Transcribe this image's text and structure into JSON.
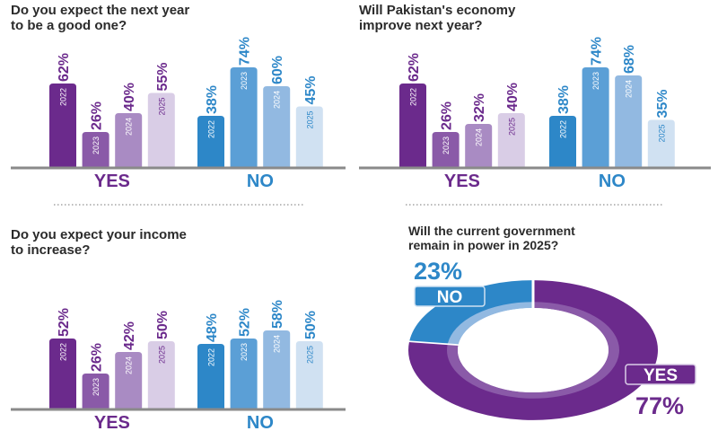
{
  "colors": {
    "yes": [
      "#6b2a8c",
      "#8a5aa8",
      "#a98bc3",
      "#d9cde6"
    ],
    "no": [
      "#2d87c8",
      "#5b9fd6",
      "#92b9e1",
      "#d0e1f2"
    ],
    "yes_text": "#6b2a8c",
    "no_text": "#2d87c8",
    "axis": "#8a8a8a"
  },
  "chart_data": [
    {
      "type": "bar",
      "title": "Do you expect the next year\nto be a good one?",
      "groups": [
        {
          "name": "YES",
          "bars": [
            {
              "year": "2022",
              "value": 62,
              "label": "62%"
            },
            {
              "year": "2023",
              "value": 26,
              "label": "26%"
            },
            {
              "year": "2024",
              "value": 40,
              "label": "40%"
            },
            {
              "year": "2025",
              "value": 55,
              "label": "55%"
            }
          ]
        },
        {
          "name": "NO",
          "bars": [
            {
              "year": "2022",
              "value": 38,
              "label": "38%"
            },
            {
              "year": "2023",
              "value": 74,
              "label": "74%"
            },
            {
              "year": "2024",
              "value": 60,
              "label": "60%"
            },
            {
              "year": "2025",
              "value": 45,
              "label": "45%"
            }
          ]
        }
      ]
    },
    {
      "type": "bar",
      "title": "Will Pakistan's economy\nimprove next year?",
      "groups": [
        {
          "name": "YES",
          "bars": [
            {
              "year": "2022",
              "value": 62,
              "label": "62%"
            },
            {
              "year": "2023",
              "value": 26,
              "label": "26%"
            },
            {
              "year": "2024",
              "value": 32,
              "label": "32%"
            },
            {
              "year": "2025",
              "value": 40,
              "label": "40%"
            }
          ]
        },
        {
          "name": "NO",
          "bars": [
            {
              "year": "2022",
              "value": 38,
              "label": "38%"
            },
            {
              "year": "2023",
              "value": 74,
              "label": "74%"
            },
            {
              "year": "2024",
              "value": 68,
              "label": "68%"
            },
            {
              "year": "2025",
              "value": 35,
              "label": "35%"
            }
          ]
        }
      ]
    },
    {
      "type": "bar",
      "title": "Do you expect your income\nto increase?",
      "groups": [
        {
          "name": "YES",
          "bars": [
            {
              "year": "2022",
              "value": 52,
              "label": "52%"
            },
            {
              "year": "2023",
              "value": 26,
              "label": "26%"
            },
            {
              "year": "2024",
              "value": 42,
              "label": "42%"
            },
            {
              "year": "2025",
              "value": 50,
              "label": "50%"
            }
          ]
        },
        {
          "name": "NO",
          "bars": [
            {
              "year": "2022",
              "value": 48,
              "label": "48%"
            },
            {
              "year": "2023",
              "value": 52,
              "label": "52%"
            },
            {
              "year": "2024",
              "value": 58,
              "label": "58%"
            },
            {
              "year": "2025",
              "value": 50,
              "label": "50%"
            }
          ]
        }
      ]
    },
    {
      "type": "pie",
      "title": "Will the current government\nremain in power in 2025?",
      "slices": [
        {
          "name": "NO",
          "value": 23,
          "label": "23%"
        },
        {
          "name": "YES",
          "value": 77,
          "label": "77%"
        }
      ]
    }
  ]
}
